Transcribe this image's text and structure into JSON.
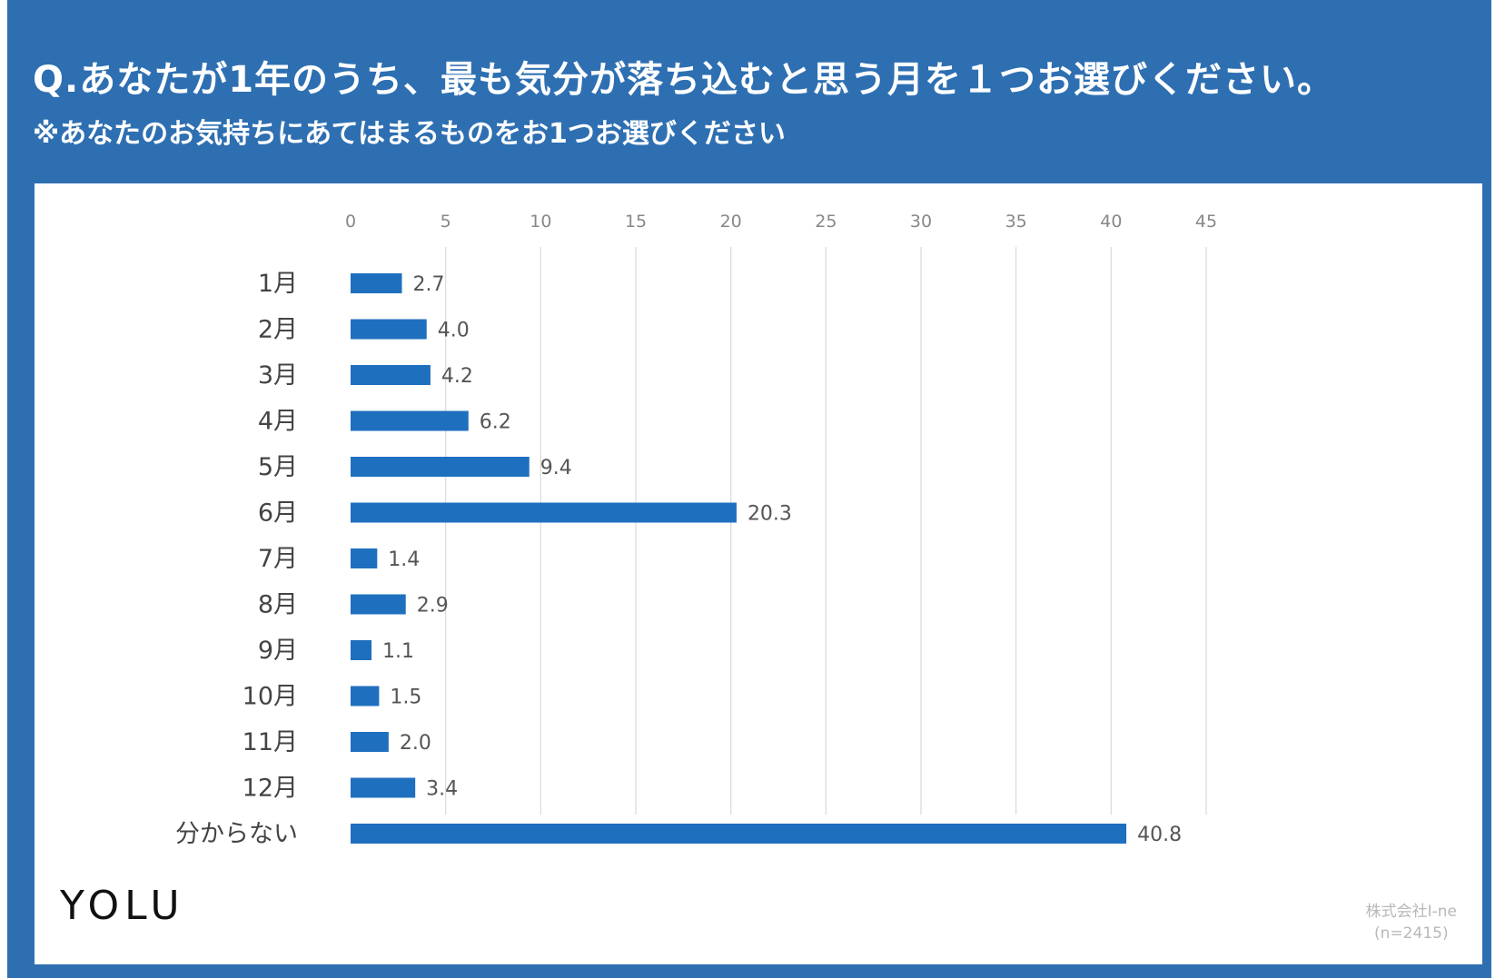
{
  "header": {
    "title": "Q.あなたが1年のうち、最も気分が落ち込むと思う月を１つお選びください。",
    "subtitle": "※あなたのお気持ちにあてはまるものをお1つお選びください"
  },
  "footer": {
    "logo": "YOLU",
    "credit_line1": "株式会社I-ne",
    "credit_line2": "(n=2415)"
  },
  "colors": {
    "frame": "#2E6FB2",
    "bar": "#1F6FBF",
    "grid": "#D9D9D9"
  },
  "chart_data": {
    "type": "bar",
    "orientation": "horizontal",
    "categories": [
      "1月",
      "2月",
      "3月",
      "4月",
      "5月",
      "6月",
      "7月",
      "8月",
      "9月",
      "10月",
      "11月",
      "12月",
      "分からない"
    ],
    "values": [
      2.7,
      4.0,
      4.2,
      6.2,
      9.4,
      20.3,
      1.4,
      2.9,
      1.1,
      1.5,
      2.0,
      3.4,
      40.8
    ],
    "value_labels": [
      "2.7",
      "4.0",
      "4.2",
      "6.2",
      "9.4",
      "20.3",
      "1.4",
      "2.9",
      "1.1",
      "1.5",
      "2.0",
      "3.4",
      "40.8"
    ],
    "xlim": [
      0,
      45
    ],
    "xticks": [
      0,
      5,
      10,
      15,
      20,
      25,
      30,
      35,
      40,
      45
    ],
    "axis_position": "top",
    "grid": true,
    "legend": "none"
  }
}
